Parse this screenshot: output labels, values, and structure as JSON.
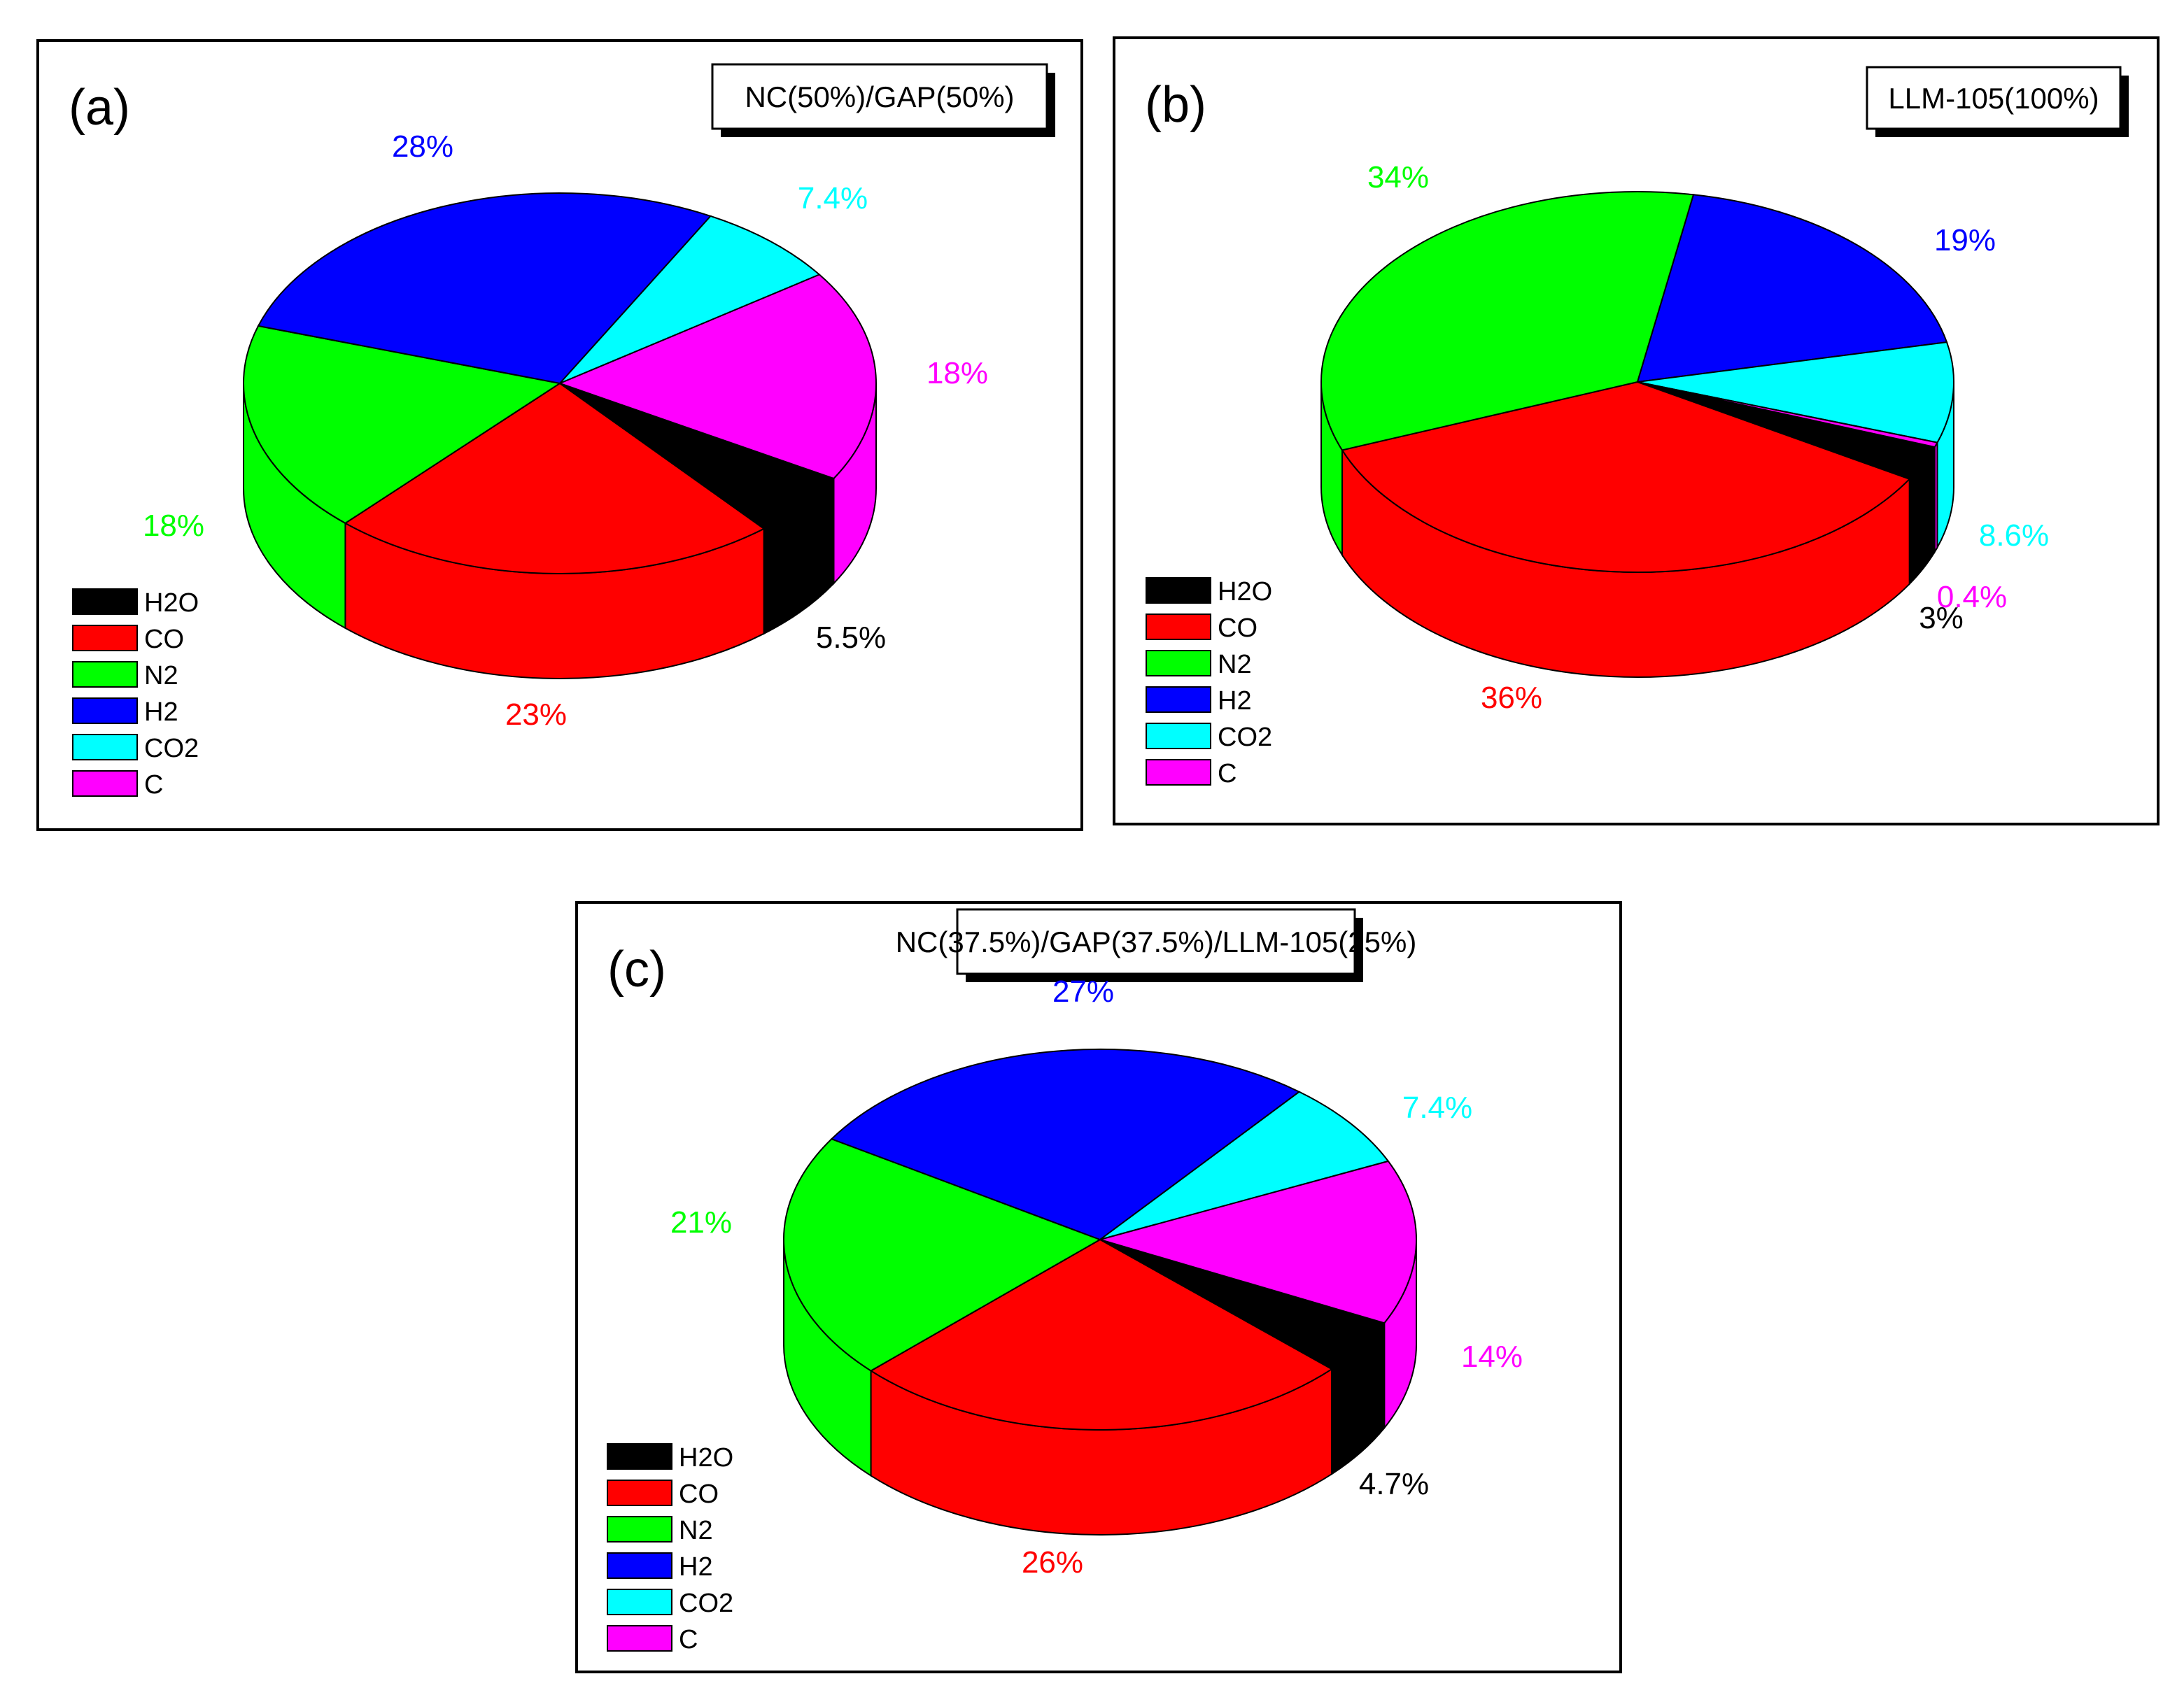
{
  "legend_labels": [
    "H2O",
    "CO",
    "N2",
    "H2",
    "CO2",
    "C"
  ],
  "series_colors": {
    "H2O": "#000000",
    "CO": "#FF0000",
    "N2": "#00FF00",
    "H2": "#0000FF",
    "CO2": "#00FFFF",
    "C": "#FF00FF"
  },
  "chart_data": [
    {
      "type": "pie",
      "panel_label": "(a)",
      "title": "NC(50%)/GAP(50%)",
      "categories": [
        "H2O",
        "CO",
        "N2",
        "H2",
        "CO2",
        "C"
      ],
      "values": [
        5.5,
        23,
        18,
        28,
        7.4,
        18
      ],
      "value_labels": [
        "5.5%",
        "23%",
        "18%",
        "28%",
        "7.4%",
        "18%"
      ],
      "legend_position": "bottom-left",
      "style": "3d"
    },
    {
      "type": "pie",
      "panel_label": "(b)",
      "title": "LLM-105(100%)",
      "categories": [
        "H2O",
        "CO",
        "N2",
        "H2",
        "CO2",
        "C"
      ],
      "values": [
        3,
        36,
        34,
        19,
        8.6,
        0.4
      ],
      "value_labels": [
        "3%",
        "36%",
        "34%",
        "19%",
        "8.6%",
        "0.4%"
      ],
      "legend_position": "bottom-left",
      "style": "3d"
    },
    {
      "type": "pie",
      "panel_label": "(c)",
      "title": "NC(37.5%)/GAP(37.5%)/LLM-105(25%)",
      "categories": [
        "H2O",
        "CO",
        "N2",
        "H2",
        "CO2",
        "C"
      ],
      "values": [
        4.7,
        26,
        21,
        27,
        7.4,
        14
      ],
      "value_labels": [
        "4.7%",
        "26%",
        "21%",
        "27%",
        "7.4%",
        "14%"
      ],
      "legend_position": "bottom-left",
      "style": "3d"
    }
  ]
}
